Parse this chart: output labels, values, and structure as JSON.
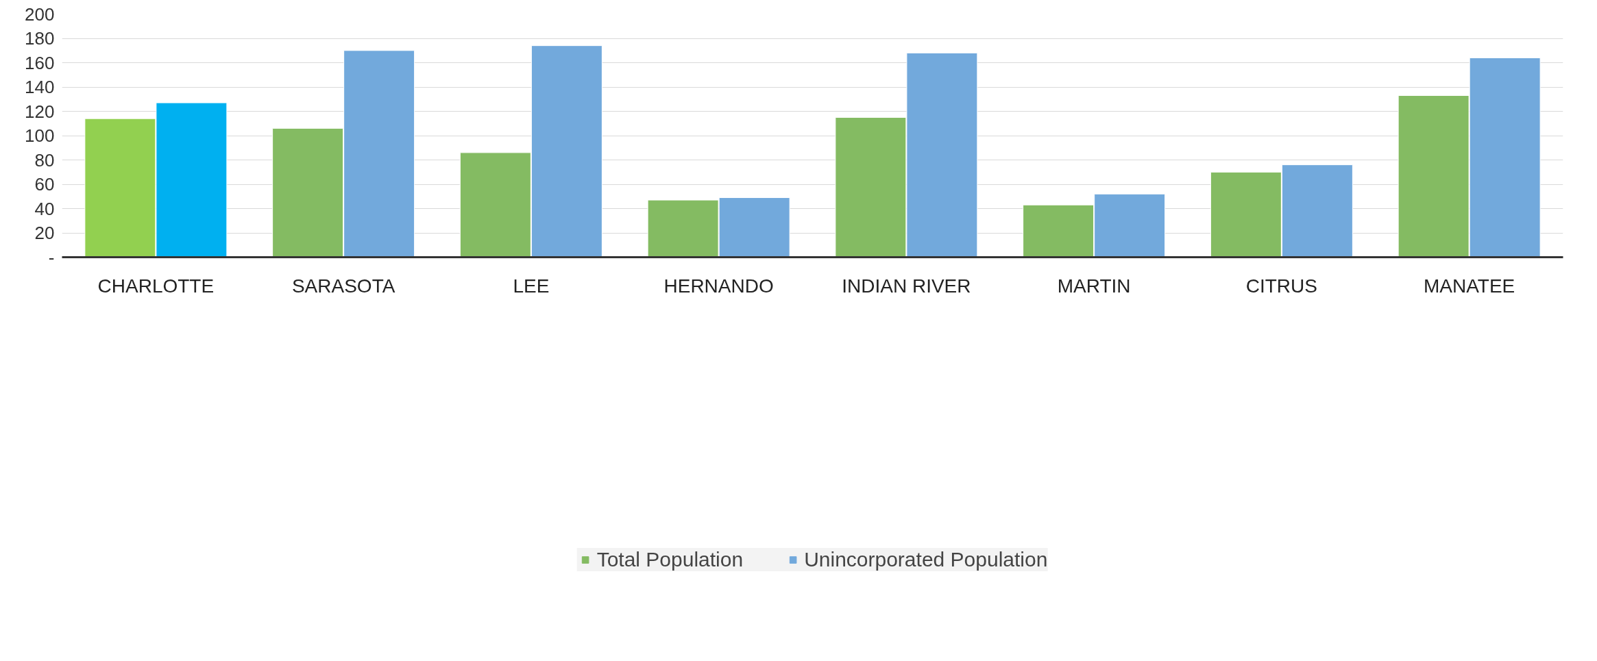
{
  "chart_data": {
    "type": "bar",
    "categories": [
      "CHARLOTTE",
      "SARASOTA",
      "LEE",
      "HERNANDO",
      "INDIAN RIVER",
      "MARTIN",
      "CITRUS",
      "MANATEE"
    ],
    "series": [
      {
        "name": "Total Population",
        "color": "#84bb62",
        "colors": [
          "#92d050",
          "#84bb62",
          "#84bb62",
          "#84bb62",
          "#84bb62",
          "#84bb62",
          "#84bb62",
          "#84bb62"
        ],
        "values": [
          114,
          106,
          86,
          47,
          115,
          43,
          70,
          133
        ]
      },
      {
        "name": "Unincorporated Population",
        "color": "#72a9dc",
        "colors": [
          "#00b0f0",
          "#72a9dc",
          "#72a9dc",
          "#72a9dc",
          "#72a9dc",
          "#72a9dc",
          "#72a9dc",
          "#72a9dc"
        ],
        "values": [
          127,
          170,
          174,
          49,
          168,
          52,
          76,
          164
        ]
      }
    ],
    "ylim": [
      0,
      200
    ],
    "yticks": [
      {
        "value": 0,
        "label": "-"
      },
      20,
      40,
      60,
      80,
      100,
      120,
      140,
      160,
      180,
      200
    ],
    "grid": "y",
    "legend": "bottom"
  }
}
